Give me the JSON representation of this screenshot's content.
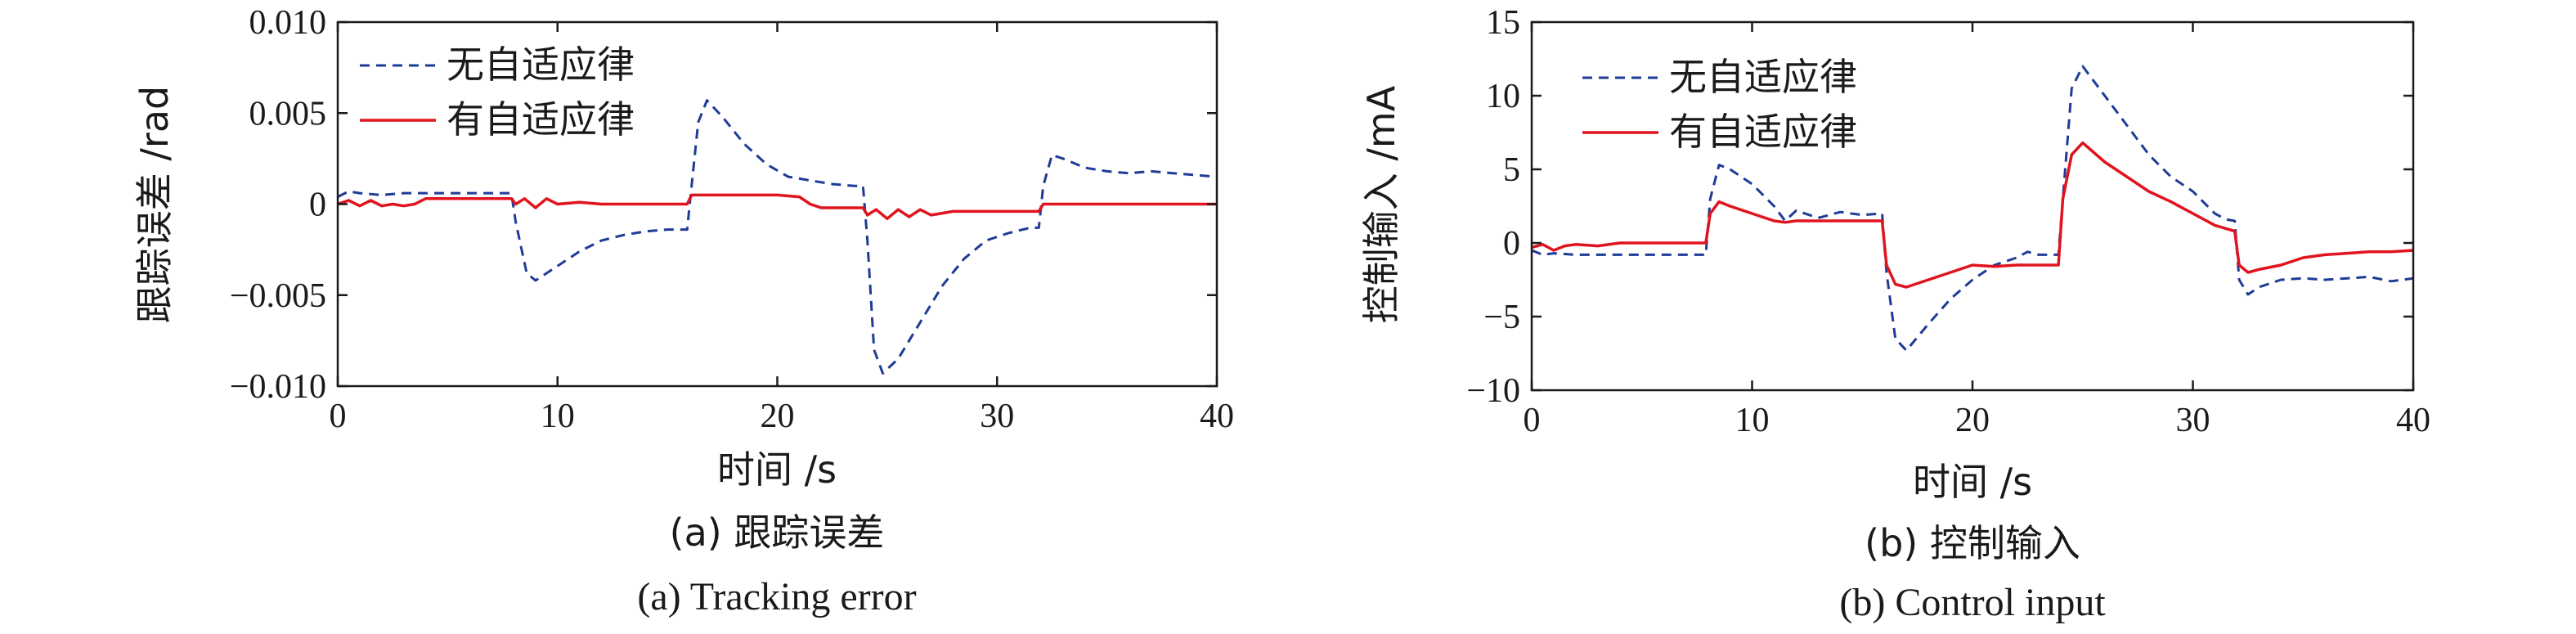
{
  "colors": {
    "no_adaptive": "#1f3b95",
    "adaptive": "#e0141e",
    "axis": "#1a1a1a"
  },
  "chart_data": [
    {
      "type": "line",
      "xlabel": "时间 /s",
      "ylabel": "跟踪误差 /rad",
      "xlim": [
        0,
        40
      ],
      "ylim": [
        -0.01,
        0.01
      ],
      "xticks": [
        "0",
        "10",
        "20",
        "30",
        "40"
      ],
      "yticks": [
        "−0.010",
        "−0.005",
        "0",
        "0.005",
        "0.010"
      ],
      "caption_cn": "(a) 跟踪误差",
      "caption_en": "(a) Tracking error",
      "legend_position": "top-left",
      "series": [
        {
          "name": "无自适应律",
          "style": "dashed",
          "x": [
            0,
            0.5,
            1,
            2,
            3,
            4,
            5,
            6,
            7,
            7.9,
            8.1,
            8.6,
            9,
            10,
            11,
            12,
            13,
            14,
            15,
            15.9,
            16.1,
            16.4,
            16.8,
            17.5,
            18.5,
            19.5,
            20.5,
            21.5,
            22.5,
            23.5,
            23.9,
            24.1,
            24.4,
            24.8,
            25.5,
            26.5,
            27.5,
            28.5,
            29.5,
            30.5,
            31.5,
            31.9,
            32.1,
            32.5,
            33,
            34,
            35,
            36,
            37,
            38,
            39,
            40
          ],
          "y": [
            0.0004,
            0.0007,
            0.0006,
            0.0005,
            0.0006,
            0.0006,
            0.0006,
            0.0006,
            0.0006,
            0.0006,
            -0.001,
            -0.0038,
            -0.0042,
            -0.0034,
            -0.0026,
            -0.002,
            -0.0017,
            -0.0015,
            -0.0014,
            -0.0014,
            0.001,
            0.0045,
            0.0057,
            0.0048,
            0.0033,
            0.0022,
            0.0015,
            0.0013,
            0.0011,
            0.001,
            0.001,
            -0.002,
            -0.008,
            -0.0093,
            -0.0085,
            -0.0065,
            -0.0045,
            -0.003,
            -0.002,
            -0.0016,
            -0.0013,
            -0.0013,
            0.001,
            0.0027,
            0.0025,
            0.002,
            0.0018,
            0.0017,
            0.0018,
            0.0017,
            0.0016,
            0.0015
          ]
        },
        {
          "name": "有自适应律",
          "style": "solid",
          "x": [
            0,
            0.5,
            1,
            1.5,
            2,
            2.5,
            3,
            3.5,
            4,
            6,
            7.9,
            8.1,
            8.5,
            9,
            9.5,
            10,
            11,
            12,
            14,
            15.9,
            16.1,
            18,
            20,
            21,
            21.5,
            22,
            23.9,
            24.1,
            24.5,
            25,
            25.5,
            26,
            26.5,
            27,
            28,
            30,
            31.9,
            32.1,
            34,
            36,
            38,
            40
          ],
          "y": [
            0.0,
            0.0002,
            -0.0001,
            0.0002,
            -0.0001,
            0.0,
            -0.0001,
            0.0,
            0.0003,
            0.0003,
            0.0003,
            0.0,
            0.0003,
            -0.0002,
            0.0003,
            0.0,
            0.0001,
            0.0,
            0.0,
            0.0,
            0.0005,
            0.0005,
            0.0005,
            0.0004,
            0.0,
            -0.0002,
            -0.0002,
            -0.0006,
            -0.0003,
            -0.0008,
            -0.0003,
            -0.0007,
            -0.0003,
            -0.0006,
            -0.0004,
            -0.0004,
            -0.0004,
            0.0,
            0.0,
            0.0,
            0.0,
            0.0
          ]
        }
      ]
    },
    {
      "type": "line",
      "xlabel": "时间 /s",
      "ylabel": "控制输入 /mA",
      "xlim": [
        0,
        40
      ],
      "ylim": [
        -10,
        15
      ],
      "xticks": [
        "0",
        "10",
        "20",
        "30",
        "40"
      ],
      "yticks": [
        "−10",
        "−5",
        "0",
        "5",
        "10",
        "15"
      ],
      "caption_cn": "(b) 控制输入",
      "caption_en": "(b) Control input",
      "legend_position": "top-left",
      "series": [
        {
          "name": "无自适应律",
          "style": "dashed",
          "x": [
            0,
            0.5,
            1,
            2,
            3,
            5,
            7,
            7.9,
            8.1,
            8.5,
            9,
            10,
            11,
            11.5,
            12,
            13,
            14,
            15,
            15.9,
            16.1,
            16.5,
            17,
            18,
            19,
            20,
            21,
            22,
            22.5,
            23,
            23.9,
            24.1,
            24.5,
            25,
            26,
            27,
            28,
            29,
            30,
            31,
            31.5,
            31.9,
            32.1,
            32.5,
            33,
            34,
            35,
            36,
            37,
            38,
            39,
            40
          ],
          "y": [
            -0.5,
            -0.8,
            -0.7,
            -0.8,
            -0.8,
            -0.8,
            -0.8,
            -0.8,
            3.0,
            5.3,
            5.0,
            4.0,
            2.5,
            1.5,
            2.2,
            1.7,
            2.1,
            1.9,
            2.0,
            -2.0,
            -6.5,
            -7.3,
            -5.5,
            -3.8,
            -2.5,
            -1.5,
            -1.0,
            -0.6,
            -0.8,
            -0.8,
            3.0,
            10.5,
            12.0,
            10.0,
            8.0,
            6.0,
            4.5,
            3.5,
            2.0,
            1.6,
            1.5,
            -2.5,
            -3.5,
            -3.0,
            -2.5,
            -2.4,
            -2.5,
            -2.4,
            -2.3,
            -2.6,
            -2.4
          ]
        },
        {
          "name": "有自适应律",
          "style": "solid",
          "x": [
            0,
            0.5,
            1,
            1.5,
            2,
            3,
            4,
            5,
            6,
            7.9,
            8.1,
            8.5,
            9,
            10,
            11,
            11.5,
            12,
            13,
            14,
            15,
            15.9,
            16.1,
            16.5,
            17,
            18,
            19,
            20,
            21,
            22,
            23,
            23.9,
            24.1,
            24.5,
            25,
            26,
            27,
            28,
            29,
            30,
            31,
            31.9,
            32.1,
            32.5,
            33,
            34,
            35,
            36,
            37,
            38,
            39,
            40
          ],
          "y": [
            -0.3,
            -0.1,
            -0.5,
            -0.2,
            -0.1,
            -0.2,
            0.0,
            0.0,
            0.0,
            0.0,
            2.0,
            2.8,
            2.5,
            2.0,
            1.5,
            1.4,
            1.5,
            1.5,
            1.5,
            1.5,
            1.5,
            -1.5,
            -2.8,
            -3.0,
            -2.5,
            -2.0,
            -1.5,
            -1.6,
            -1.5,
            -1.5,
            -1.5,
            3.0,
            6.0,
            6.8,
            5.5,
            4.5,
            3.5,
            2.8,
            2.0,
            1.2,
            0.8,
            -1.5,
            -2.0,
            -1.8,
            -1.5,
            -1.0,
            -0.8,
            -0.7,
            -0.6,
            -0.6,
            -0.5
          ]
        }
      ]
    }
  ]
}
